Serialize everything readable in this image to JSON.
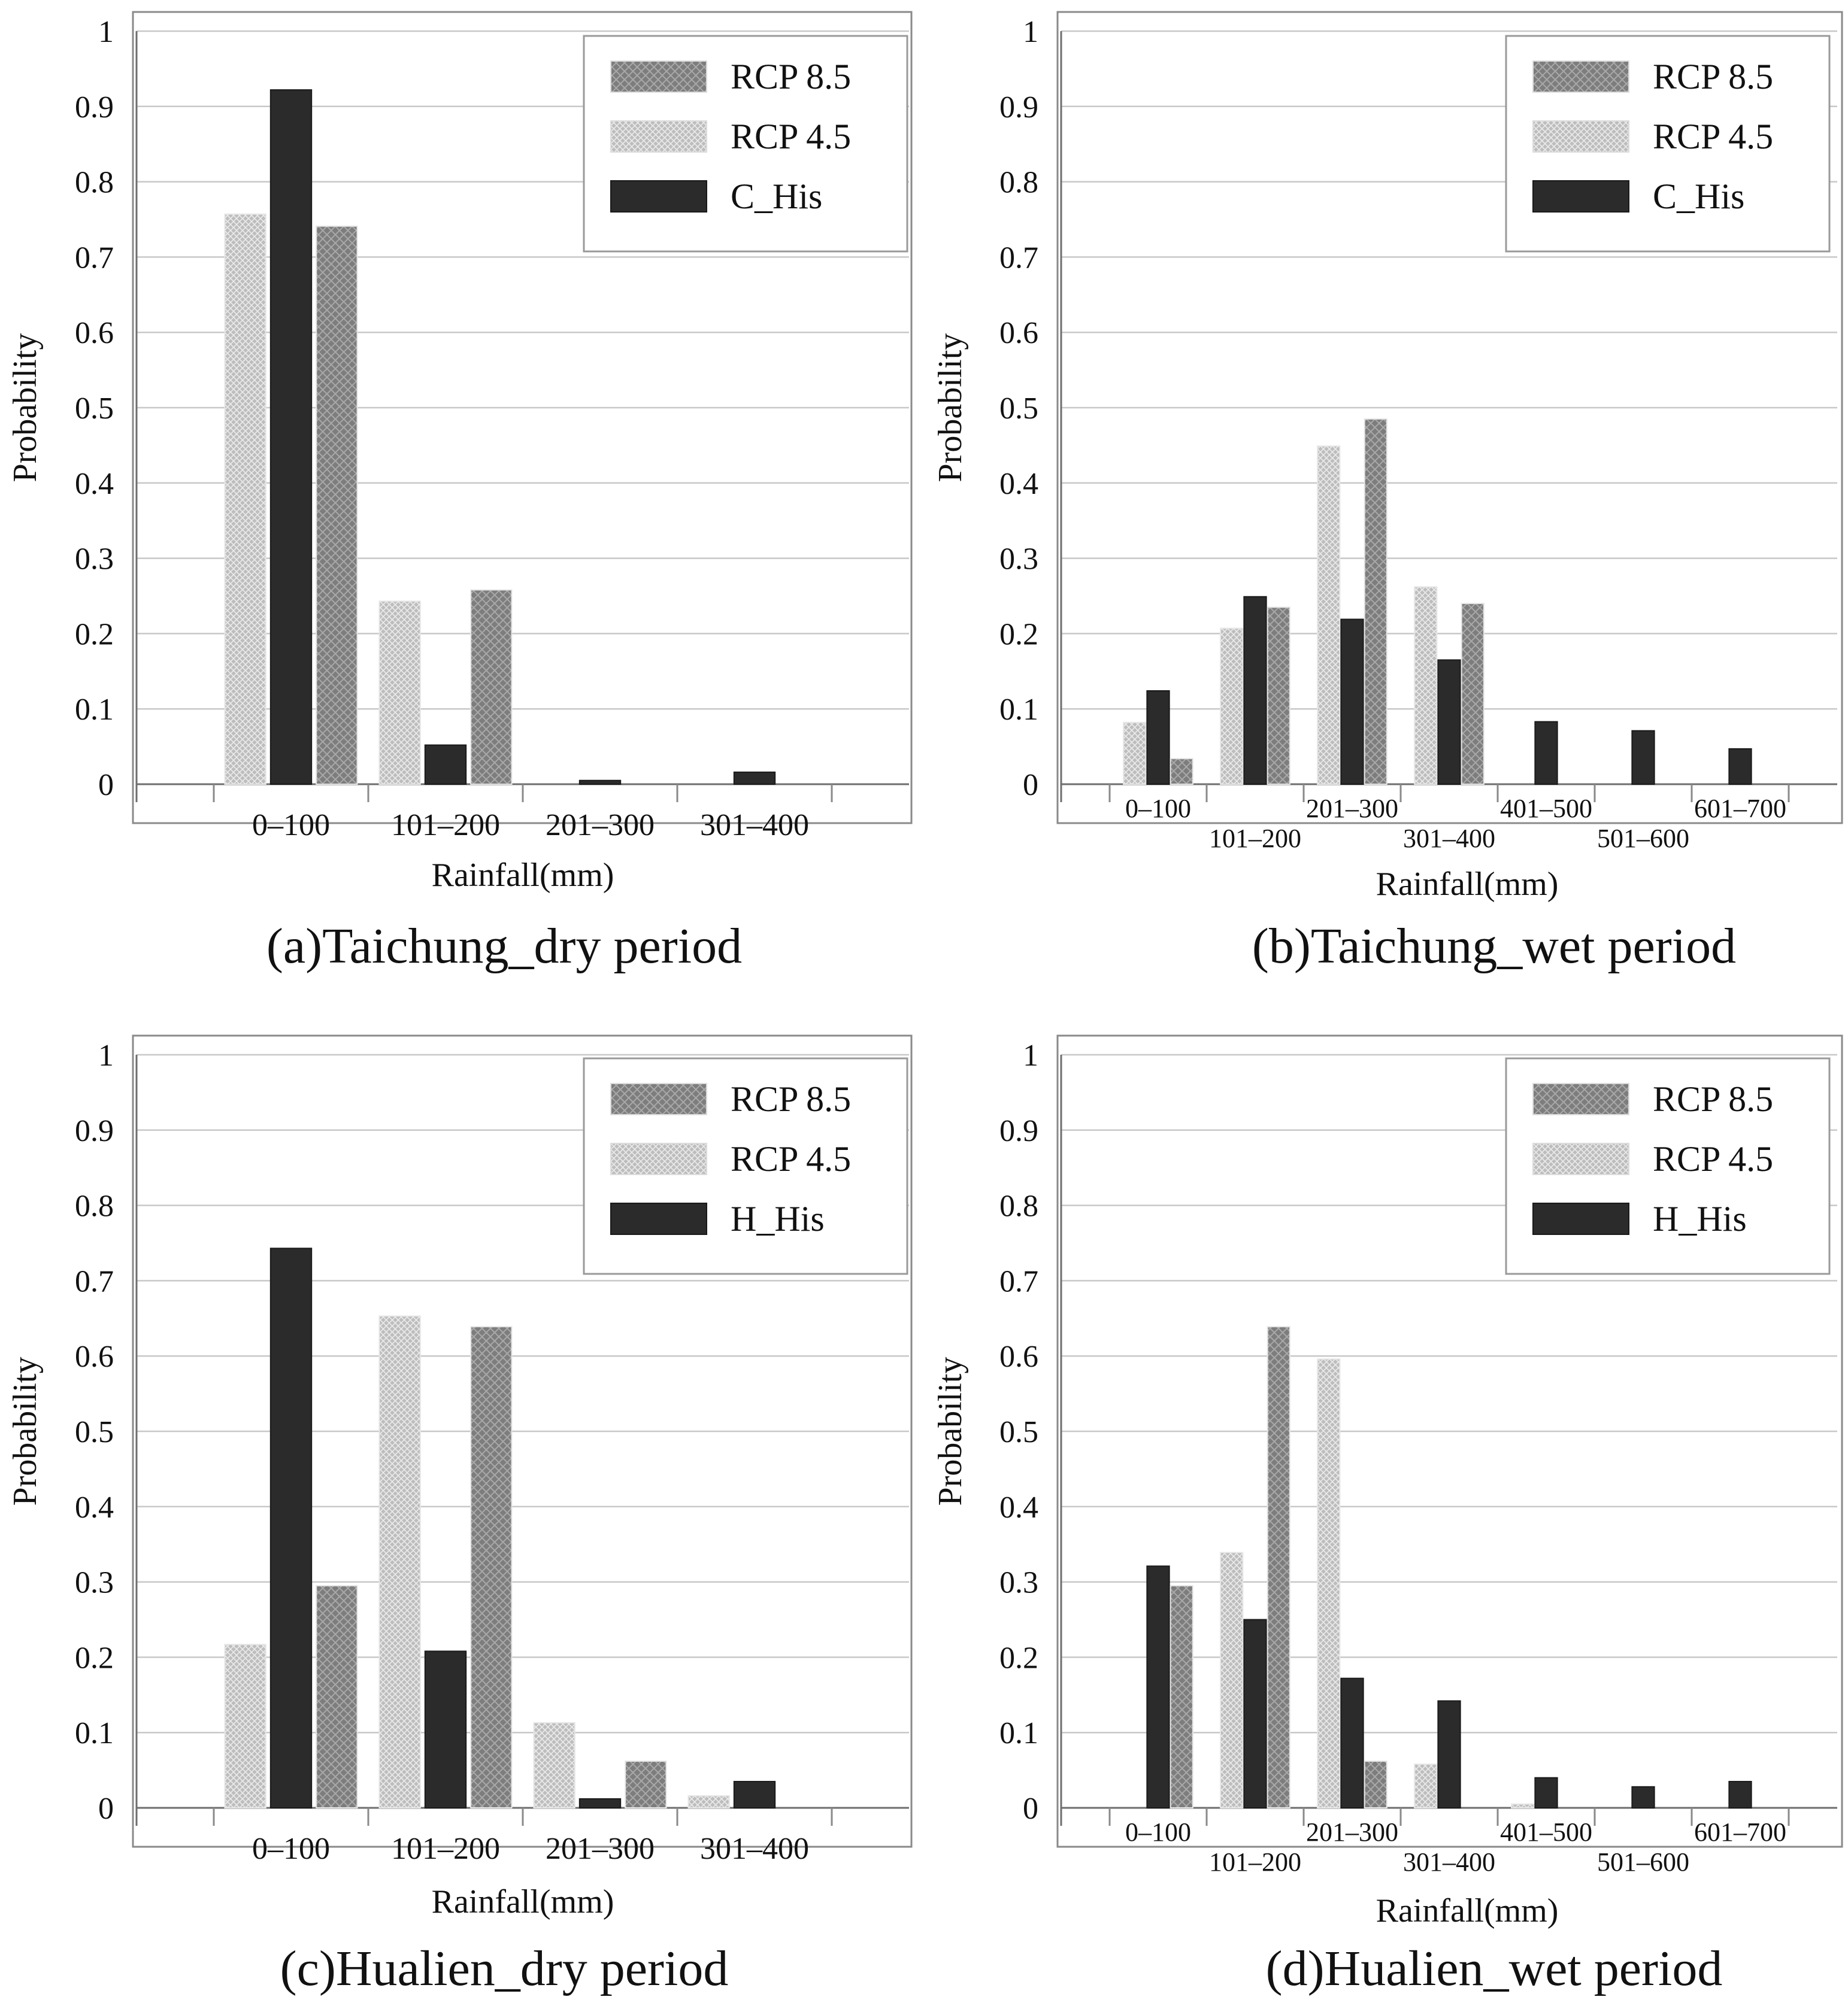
{
  "legend_labels": {
    "rcp85": "RCP 8.5",
    "rcp45": "RCP 4.5"
  },
  "colors": {
    "rcp85": "#7d7d7d",
    "rcp45": "#bdbdbd",
    "his": "#2b2b2b",
    "grid": "#c8c8c8",
    "frame": "#8a8a8a"
  },
  "chart_data": [
    {
      "type": "bar",
      "caption": "(a)Taichung_dry period",
      "xlabel": "Rainfall(mm)",
      "ylabel": "Probability",
      "ylim": [
        0,
        1
      ],
      "yticks": [
        "0",
        "0.1",
        "0.2",
        "0.3",
        "0.4",
        "0.5",
        "0.6",
        "0.7",
        "0.8",
        "0.9",
        "1"
      ],
      "categories": [
        "0–100",
        "101–200",
        "201–300",
        "301–400"
      ],
      "series": [
        {
          "name": "RCP 4.5",
          "key": "rcp45",
          "values": [
            0.757,
            0.243,
            0.0,
            0.0
          ]
        },
        {
          "name": "C_His",
          "key": "his",
          "values": [
            0.922,
            0.052,
            0.005,
            0.016
          ]
        },
        {
          "name": "RCP 8.5",
          "key": "rcp85",
          "values": [
            0.741,
            0.258,
            0.0,
            0.0
          ]
        }
      ]
    },
    {
      "type": "bar",
      "caption": "(b)Taichung_wet period",
      "xlabel": "Rainfall(mm)",
      "ylabel": "Probability",
      "ylim": [
        0,
        1
      ],
      "yticks": [
        "0",
        "0.1",
        "0.2",
        "0.3",
        "0.4",
        "0.5",
        "0.6",
        "0.7",
        "0.8",
        "0.9",
        "1"
      ],
      "categories": [
        "0–100",
        "101–200",
        "201–300",
        "301–400",
        "401–500",
        "501–600",
        "601–700"
      ],
      "series": [
        {
          "name": "RCP 4.5",
          "key": "rcp45",
          "values": [
            0.082,
            0.207,
            0.449,
            0.262,
            0.0,
            0.0,
            0.0
          ]
        },
        {
          "name": "C_His",
          "key": "his",
          "values": [
            0.124,
            0.249,
            0.219,
            0.165,
            0.083,
            0.071,
            0.047
          ]
        },
        {
          "name": "RCP 8.5",
          "key": "rcp85",
          "values": [
            0.034,
            0.235,
            0.485,
            0.24,
            0.0,
            0.0,
            0.0
          ]
        }
      ]
    },
    {
      "type": "bar",
      "caption": "(c)Hualien_dry period",
      "xlabel": "Rainfall(mm)",
      "ylabel": "Probability",
      "ylim": [
        0,
        1
      ],
      "yticks": [
        "0",
        "0.1",
        "0.2",
        "0.3",
        "0.4",
        "0.5",
        "0.6",
        "0.7",
        "0.8",
        "0.9",
        "1"
      ],
      "categories": [
        "0–100",
        "101–200",
        "201–300",
        "301–400"
      ],
      "series": [
        {
          "name": "RCP 4.5",
          "key": "rcp45",
          "values": [
            0.217,
            0.653,
            0.113,
            0.016
          ]
        },
        {
          "name": "H_His",
          "key": "his",
          "values": [
            0.743,
            0.208,
            0.012,
            0.035
          ]
        },
        {
          "name": "RCP 8.5",
          "key": "rcp85",
          "values": [
            0.295,
            0.639,
            0.062,
            0.0
          ]
        }
      ]
    },
    {
      "type": "bar",
      "caption": "(d)Hualien_wet period",
      "xlabel": "Rainfall(mm)",
      "ylabel": "Probability",
      "ylim": [
        0,
        1
      ],
      "yticks": [
        "0",
        "0.1",
        "0.2",
        "0.3",
        "0.4",
        "0.5",
        "0.6",
        "0.7",
        "0.8",
        "0.9",
        "1"
      ],
      "categories": [
        "0–100",
        "101–200",
        "201–300",
        "301–400",
        "401–500",
        "501–600",
        "601–700"
      ],
      "series": [
        {
          "name": "RCP 4.5",
          "key": "rcp45",
          "values": [
            0.0,
            0.339,
            0.596,
            0.058,
            0.005,
            0.0,
            0.0
          ]
        },
        {
          "name": "H_His",
          "key": "his",
          "values": [
            0.321,
            0.25,
            0.172,
            0.142,
            0.04,
            0.028,
            0.035
          ]
        },
        {
          "name": "RCP 8.5",
          "key": "rcp85",
          "values": [
            0.295,
            0.639,
            0.062,
            0.0,
            0.0,
            0.0,
            0.0
          ]
        }
      ]
    }
  ]
}
